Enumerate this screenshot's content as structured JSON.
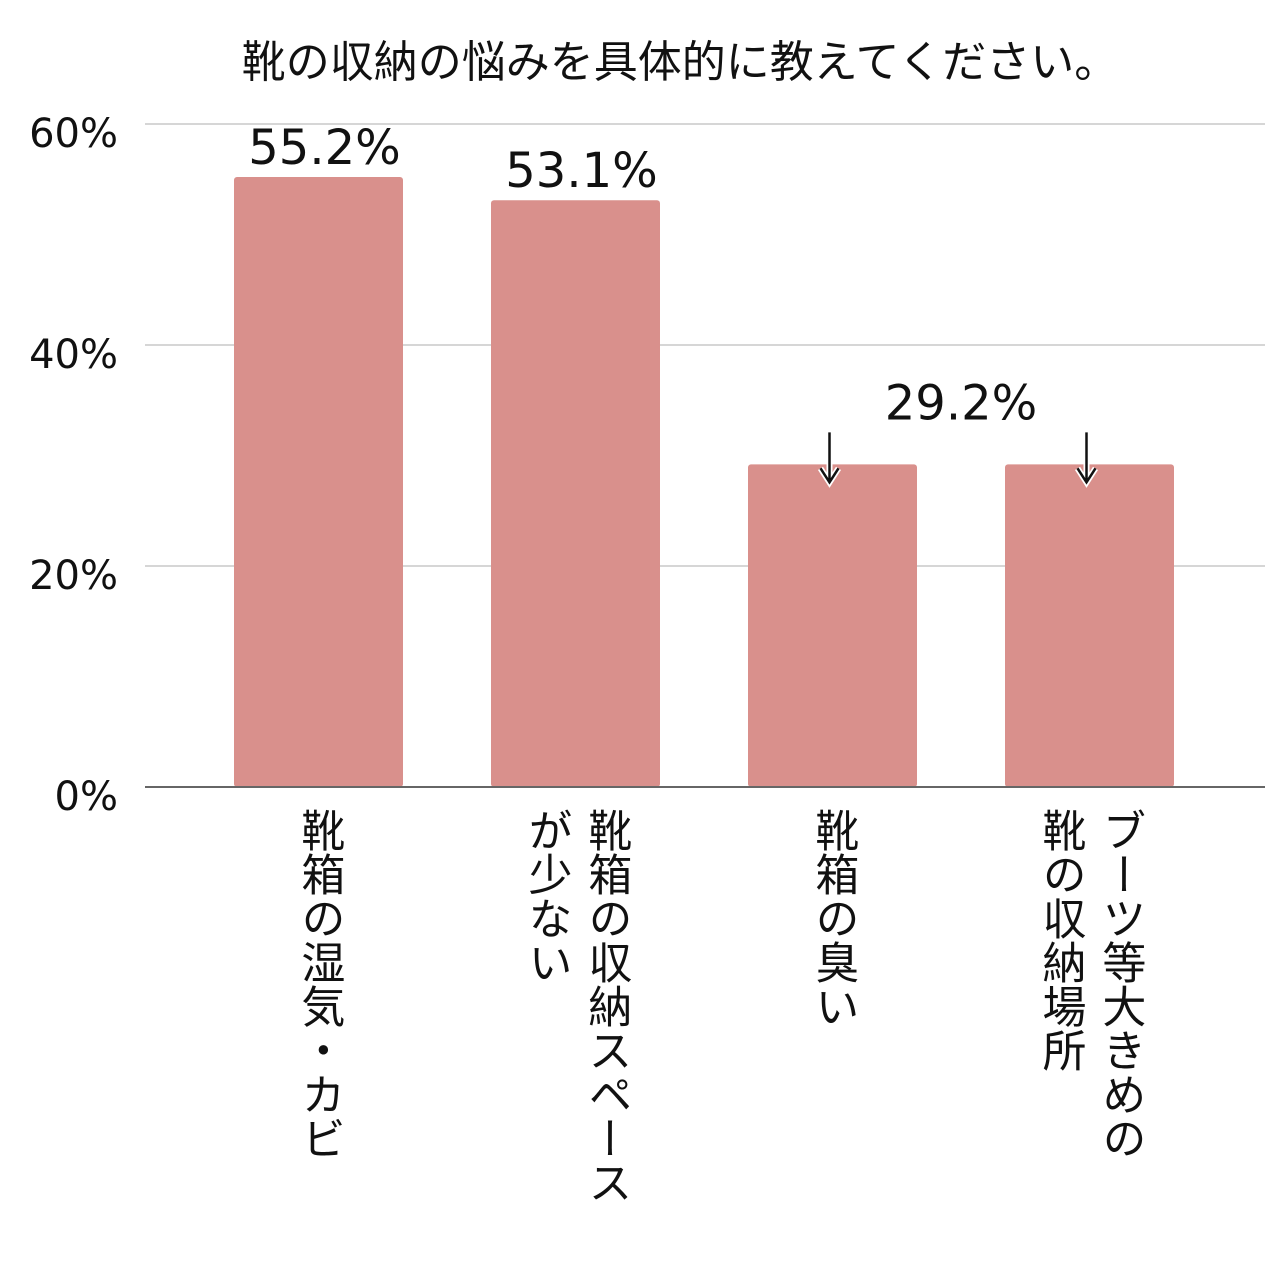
{
  "chart_data": {
    "type": "bar",
    "title": "靴の収納の悩みを具体的に教えてください。",
    "categories": [
      "靴箱の湿気・カビ",
      "靴箱の収納スペース\nが少ない",
      "靴箱の臭い",
      "ブーツ等大きめの\n靴の収納場所"
    ],
    "values": [
      55.2,
      53.1,
      29.2,
      29.2
    ],
    "value_labels": [
      "55.2%",
      "53.1%",
      null,
      null
    ],
    "annotation": "29.2%",
    "color": "#d9908c",
    "ylim": [
      0,
      60
    ],
    "yticks": [
      {
        "value": 0,
        "label": "0%"
      },
      {
        "value": 20,
        "label": "20%"
      },
      {
        "value": 40,
        "label": "40%"
      },
      {
        "value": 60,
        "label": "60%"
      }
    ],
    "grid": true
  }
}
